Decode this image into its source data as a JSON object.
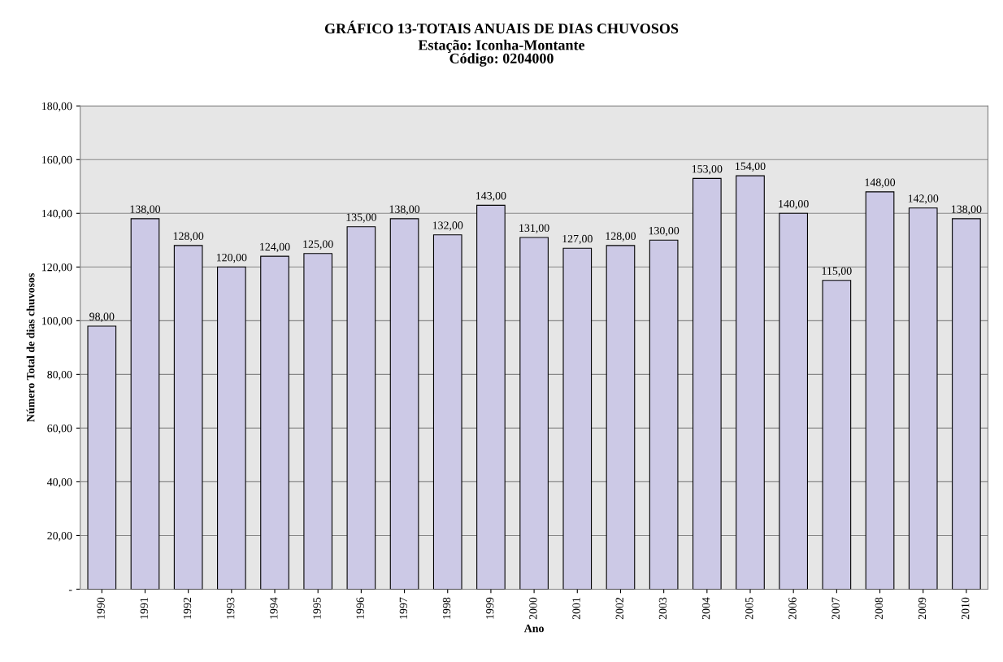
{
  "chart_data": {
    "type": "bar",
    "title": "GRÁFICO 13-TOTAIS ANUAIS DE DIAS CHUVOSOS",
    "subtitle": "Estação: Iconha-Montante\nCódigo: 0204000",
    "xlabel": "Ano",
    "ylabel": "Número Total de dias chuvosos",
    "categories": [
      "1990",
      "1991",
      "1992",
      "1993",
      "1994",
      "1995",
      "1996",
      "1997",
      "1998",
      "1999",
      "2000",
      "2001",
      "2002",
      "2003",
      "2004",
      "2005",
      "2006",
      "2007",
      "2008",
      "2009",
      "2010"
    ],
    "values": [
      98,
      138,
      128,
      120,
      124,
      125,
      135,
      138,
      132,
      143,
      131,
      127,
      128,
      130,
      153,
      154,
      140,
      115,
      148,
      142,
      138
    ],
    "value_labels": [
      "98,00",
      "138,00",
      "128,00",
      "120,00",
      "124,00",
      "125,00",
      "135,00",
      "138,00",
      "132,00",
      "143,00",
      "131,00",
      "127,00",
      "128,00",
      "130,00",
      "153,00",
      "154,00",
      "140,00",
      "115,00",
      "148,00",
      "142,00",
      "138,00"
    ],
    "color": "#ccc9e6",
    "ylim": [
      0,
      180
    ],
    "yticks": [
      {
        "value": 0,
        "label": "-"
      },
      {
        "value": 20,
        "label": "20,00"
      },
      {
        "value": 40,
        "label": "40,00"
      },
      {
        "value": 60,
        "label": "60,00"
      },
      {
        "value": 80,
        "label": "80,00"
      },
      {
        "value": 100,
        "label": "100,00"
      },
      {
        "value": 120,
        "label": "120,00"
      },
      {
        "value": 140,
        "label": "140,00"
      },
      {
        "value": 160,
        "label": "160,00"
      },
      {
        "value": 180,
        "label": "180,00"
      }
    ],
    "grid": "y"
  }
}
